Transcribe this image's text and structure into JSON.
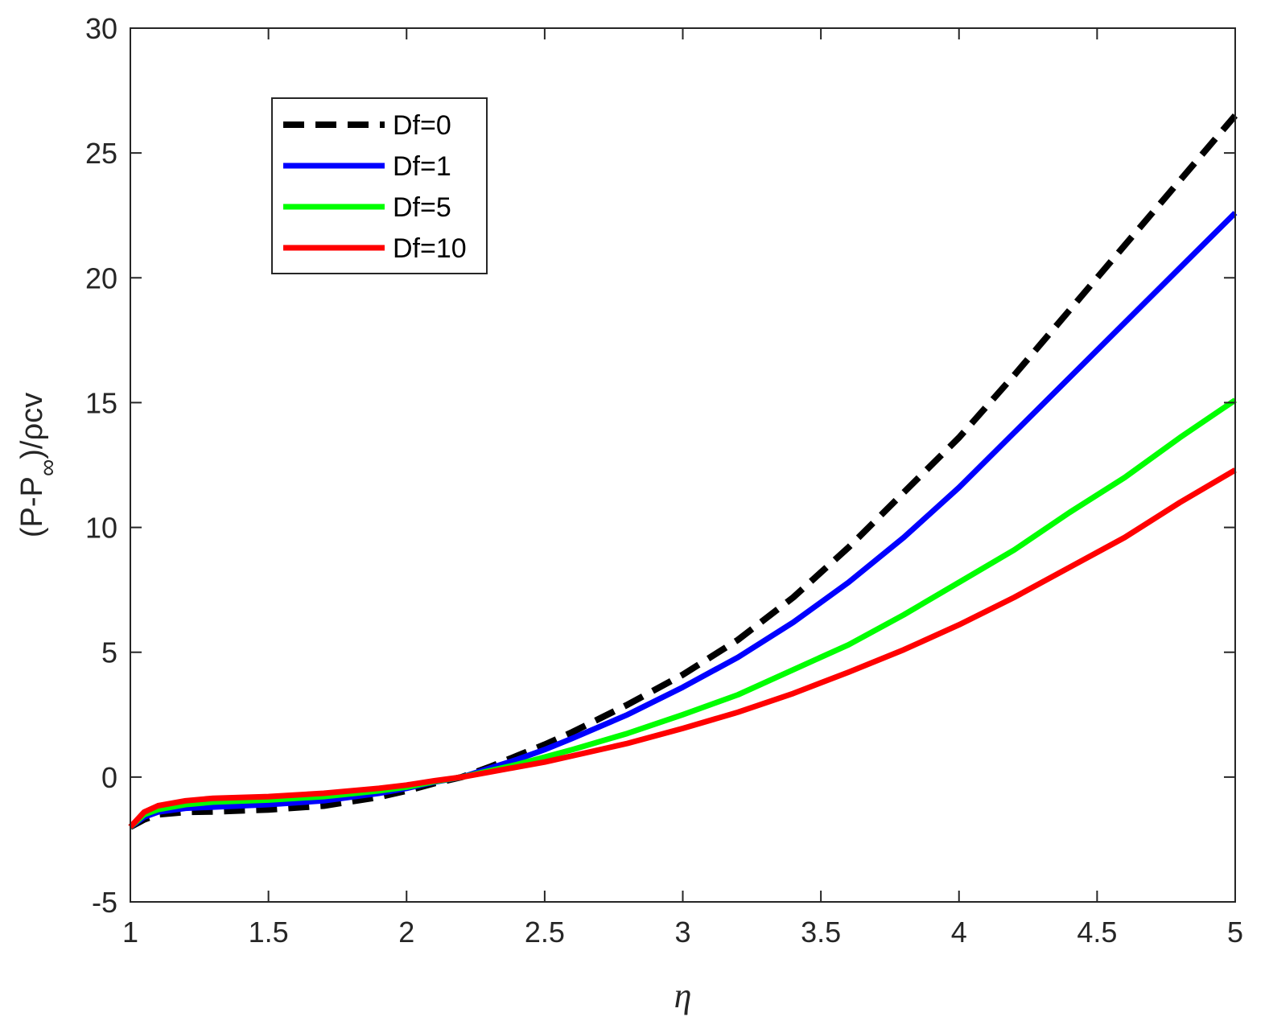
{
  "chart_data": {
    "type": "line",
    "xlabel": "η",
    "ylabel": "(P-P∞)/ρcv",
    "ylabel_parts": {
      "pre": "(P-P",
      "sub": "∞",
      "post": ")/ρcv"
    },
    "xlim": [
      1,
      5
    ],
    "ylim": [
      -5,
      30
    ],
    "xticks": [
      1,
      1.5,
      2,
      2.5,
      3,
      3.5,
      4,
      4.5,
      5
    ],
    "xtick_labels": [
      "1",
      "1.5",
      "2",
      "2.5",
      "3",
      "3.5",
      "4",
      "4.5",
      "5"
    ],
    "yticks": [
      -5,
      0,
      5,
      10,
      15,
      20,
      25,
      30
    ],
    "ytick_labels": [
      "-5",
      "0",
      "5",
      "10",
      "15",
      "20",
      "25",
      "30"
    ],
    "grid": false,
    "legend_position": "top-left",
    "x": [
      1.0,
      1.05,
      1.1,
      1.2,
      1.3,
      1.5,
      1.7,
      1.9,
      2.0,
      2.1,
      2.2,
      2.3,
      2.4,
      2.5,
      2.6,
      2.8,
      3.0,
      3.2,
      3.4,
      3.6,
      3.8,
      4.0,
      4.2,
      4.4,
      4.6,
      4.8,
      5.0
    ],
    "series": [
      {
        "name": "Df=0",
        "color": "#000000",
        "dash": true,
        "values": [
          -2.0,
          -1.7,
          -1.5,
          -1.4,
          -1.38,
          -1.3,
          -1.15,
          -0.8,
          -0.55,
          -0.25,
          0.0,
          0.4,
          0.85,
          1.3,
          1.8,
          2.9,
          4.1,
          5.5,
          7.2,
          9.2,
          11.4,
          13.6,
          16.1,
          18.7,
          21.3,
          23.9,
          26.5
        ]
      },
      {
        "name": "Df=1",
        "color": "#0000ff",
        "dash": false,
        "values": [
          -2.0,
          -1.6,
          -1.4,
          -1.25,
          -1.2,
          -1.1,
          -0.95,
          -0.65,
          -0.45,
          -0.2,
          0.0,
          0.35,
          0.7,
          1.1,
          1.55,
          2.5,
          3.6,
          4.8,
          6.2,
          7.8,
          9.6,
          11.6,
          13.8,
          16.0,
          18.2,
          20.4,
          22.6
        ]
      },
      {
        "name": "Df=5",
        "color": "#00ff00",
        "dash": false,
        "values": [
          -2.0,
          -1.5,
          -1.3,
          -1.1,
          -1.0,
          -0.92,
          -0.78,
          -0.55,
          -0.4,
          -0.18,
          0.0,
          0.25,
          0.5,
          0.8,
          1.1,
          1.75,
          2.5,
          3.3,
          4.3,
          5.3,
          6.5,
          7.8,
          9.1,
          10.6,
          12.0,
          13.6,
          15.1
        ]
      },
      {
        "name": "Df=10",
        "color": "#ff0000",
        "dash": false,
        "values": [
          -2.0,
          -1.4,
          -1.15,
          -0.95,
          -0.85,
          -0.78,
          -0.65,
          -0.45,
          -0.32,
          -0.15,
          0.0,
          0.2,
          0.4,
          0.6,
          0.85,
          1.35,
          1.95,
          2.6,
          3.35,
          4.2,
          5.1,
          6.1,
          7.2,
          8.4,
          9.6,
          11.0,
          12.3
        ]
      }
    ]
  }
}
